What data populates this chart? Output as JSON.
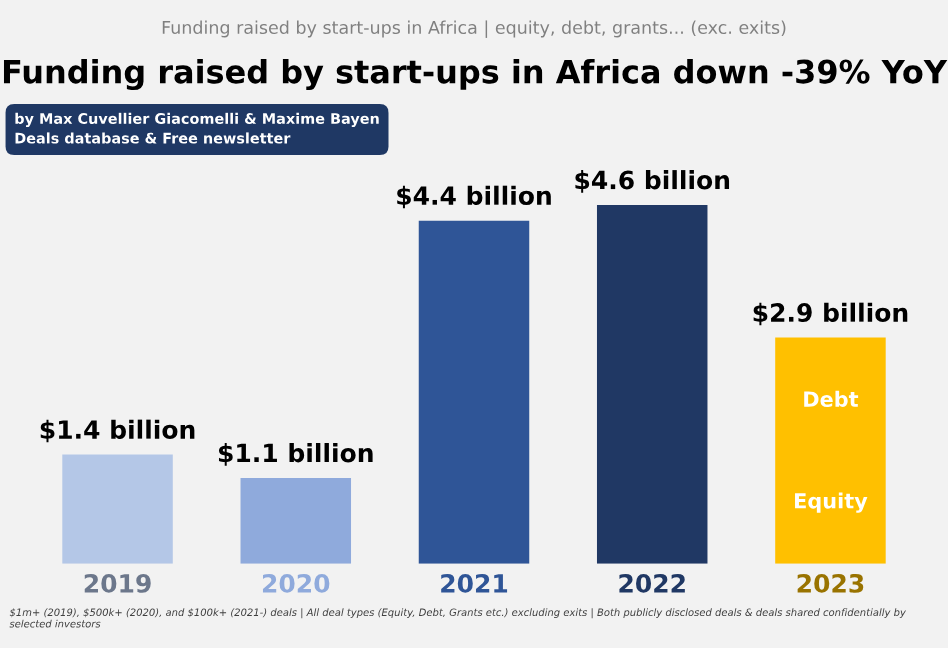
{
  "chart_data": {
    "type": "bar",
    "subtitle": "Funding raised by start-ups in Africa | equity, debt, grants... (exc. exits)",
    "title": "Funding raised by start-ups in Africa down -39% YoY",
    "categories": [
      "2019",
      "2020",
      "2021",
      "2022",
      "2023"
    ],
    "values": [
      1.4,
      1.1,
      4.4,
      4.6,
      2.9
    ],
    "colors": [
      "#b4c7e7",
      "#8faadc",
      "#2f5597",
      "#203864",
      "#ffc000"
    ],
    "value_labels": [
      "$1.4 billion",
      "$1.1 billion",
      "$4.4 billion",
      "$4.6 billion",
      "$2.9 billion"
    ],
    "annotations": [
      "Debt",
      "Equity",
      "by Max Cuvellier Giacomelli & Maxime Bayen\nDeals database & Free newsletter",
      "$1m+ (2019), $500k+ (2020), and $100k+ (2021-) deals | All deal types (Equity, Debt, Grants etc.) excluding exits | Both publicly disclosed deals & deals shared confidentially by selected investors"
    ],
    "legend": false,
    "grid": false
  }
}
